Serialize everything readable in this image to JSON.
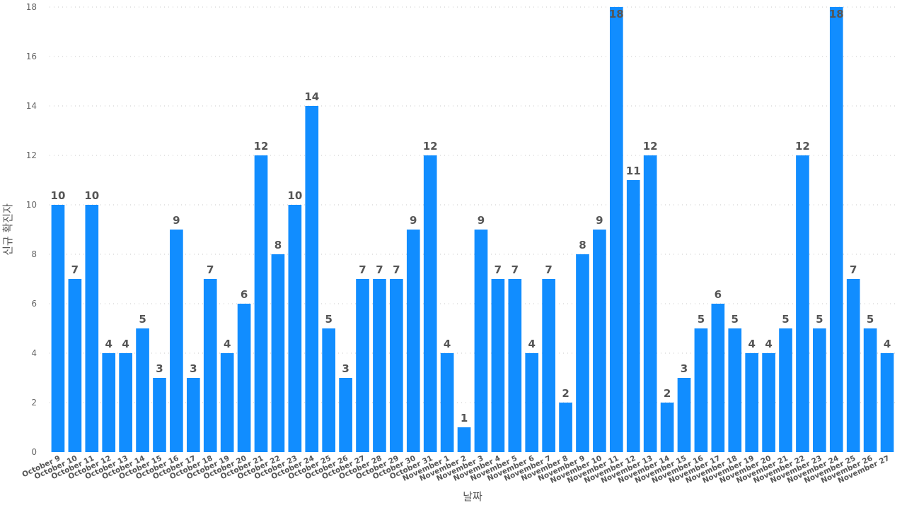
{
  "chart_data": {
    "type": "bar",
    "title": "",
    "xlabel": "날짜",
    "ylabel": "신규 확진자",
    "ylim": [
      0,
      18
    ],
    "y_ticks": [
      0,
      2,
      4,
      6,
      8,
      10,
      12,
      14,
      16,
      18
    ],
    "grid": "horizontal dotted",
    "legend": "none",
    "bar_color": "#118DFF",
    "categories": [
      "October 9",
      "October 10",
      "October 11",
      "October 12",
      "October 13",
      "October 14",
      "October 15",
      "October 16",
      "October 17",
      "October 18",
      "October 19",
      "October 20",
      "October 21",
      "October 22",
      "October 23",
      "October 24",
      "October 25",
      "October 26",
      "October 27",
      "October 28",
      "October 29",
      "October 30",
      "October 31",
      "November 1",
      "November 2",
      "November 3",
      "November 4",
      "November 5",
      "November 6",
      "November 7",
      "November 8",
      "November 9",
      "November 10",
      "November 11",
      "November 12",
      "November 13",
      "November 14",
      "November 15",
      "November 16",
      "November 17",
      "November 18",
      "November 19",
      "November 20",
      "November 21",
      "November 22",
      "November 23",
      "November 24",
      "November 25",
      "November 26",
      "November 27"
    ],
    "values": [
      10,
      7,
      10,
      4,
      4,
      5,
      3,
      9,
      3,
      7,
      4,
      6,
      12,
      8,
      10,
      14,
      5,
      3,
      7,
      7,
      7,
      9,
      12,
      4,
      1,
      9,
      7,
      7,
      4,
      7,
      2,
      8,
      9,
      18,
      11,
      12,
      2,
      3,
      5,
      6,
      5,
      4,
      4,
      5,
      12,
      5,
      18,
      7,
      5,
      4
    ]
  }
}
